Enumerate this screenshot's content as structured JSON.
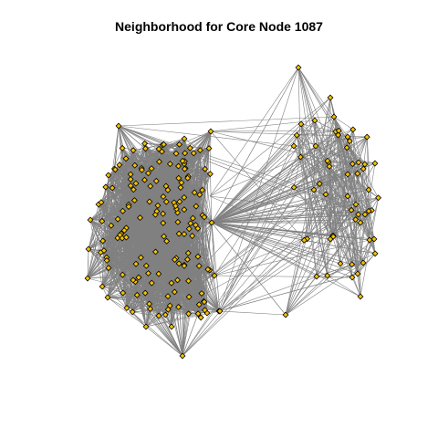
{
  "title": "Neighborhood for Core Node 1087",
  "colors": {
    "edge": "#808080",
    "node_fill": "#f5c200",
    "node_stroke": "#000000",
    "background": "#ffffff"
  },
  "graph": {
    "node_shape": "diamond",
    "node_count_left_cluster": 170,
    "node_count_right_cluster": 60,
    "edges_drawn": "dense"
  }
}
